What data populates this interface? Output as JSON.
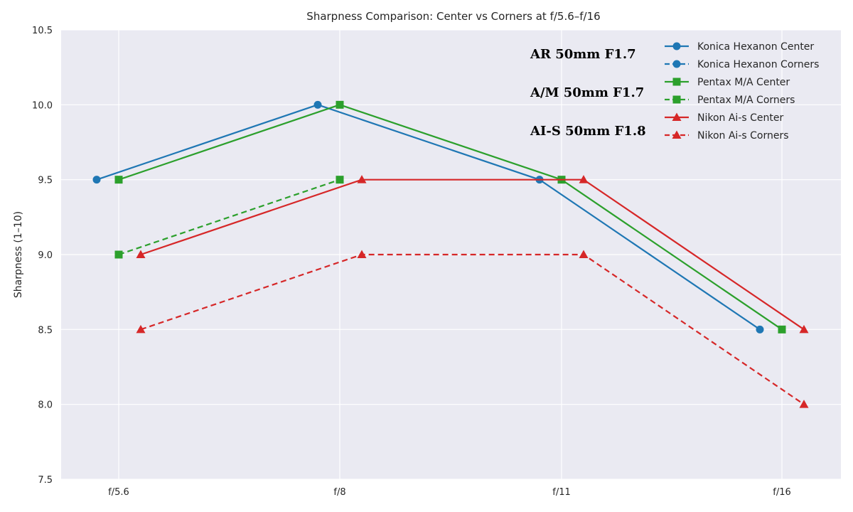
{
  "chart_data": {
    "type": "line",
    "title": "Sharpness Comparison: Center vs Corners at f/5.6–f/16",
    "xlabel": "",
    "ylabel": "Sharpness (1–10)",
    "categories": [
      "f/5.6",
      "f/8",
      "f/11",
      "f/16"
    ],
    "ylim": [
      7.5,
      10.5
    ],
    "yticks": [
      "7.5",
      "8.0",
      "8.5",
      "9.0",
      "9.5",
      "10.0",
      "10.5"
    ],
    "grid": true,
    "legend_position": "top-right",
    "series": [
      {
        "name": "Konica Hexanon Center",
        "values": [
          9.5,
          10.0,
          9.5,
          8.5
        ],
        "color": "#1f77b4",
        "marker": "circle",
        "dash": "solid",
        "offset": "left"
      },
      {
        "name": "Konica Hexanon Corners",
        "values": [
          null,
          null,
          null,
          null
        ],
        "color": "#1f77b4",
        "marker": "circle",
        "dash": "dashed",
        "offset": "left"
      },
      {
        "name": "Pentax M/A Center",
        "values": [
          9.5,
          10.0,
          9.5,
          8.5
        ],
        "color": "#2ca02c",
        "marker": "square",
        "dash": "solid",
        "offset": "center"
      },
      {
        "name": "Pentax M/A Corners",
        "values": [
          9.0,
          9.5,
          null,
          null
        ],
        "color": "#2ca02c",
        "marker": "square",
        "dash": "dashed",
        "offset": "center"
      },
      {
        "name": "Nikon Ai-s Center",
        "values": [
          9.0,
          9.5,
          9.5,
          8.5
        ],
        "color": "#d62728",
        "marker": "triangle",
        "dash": "solid",
        "offset": "right"
      },
      {
        "name": "Nikon Ai-s Corners",
        "values": [
          8.5,
          9.0,
          9.0,
          8.0
        ],
        "color": "#d62728",
        "marker": "triangle",
        "dash": "dashed",
        "offset": "right"
      }
    ],
    "annotations": [
      "AR   50mm F1.7",
      "A/M  50mm F1.7",
      "AI-S  50mm F1.8"
    ]
  }
}
